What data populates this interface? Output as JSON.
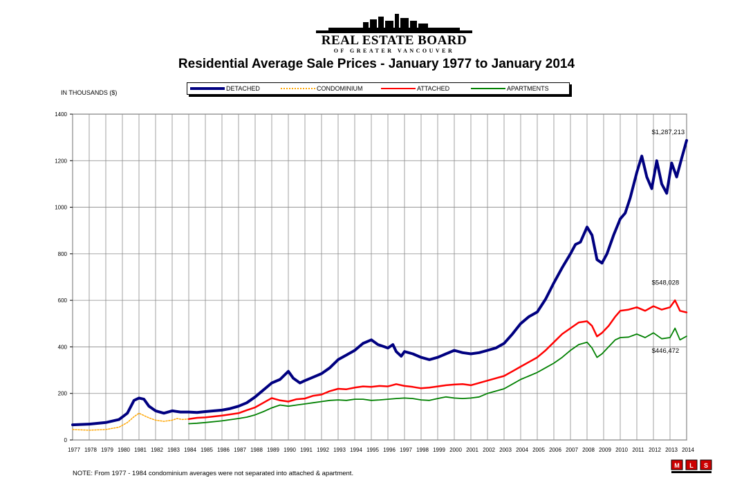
{
  "header": {
    "logo_main": "REAL ESTATE BOARD",
    "logo_sub": "OF GREATER VANCOUVER"
  },
  "footer": {
    "note": "NOTE:  From 1977 - 1984 condominium averages were not separated into attached & apartment.",
    "mls_logo": "MLS"
  },
  "colors": {
    "detached": "#000080",
    "condominium": "#FFA500",
    "attached": "#FF0000",
    "apartments": "#008000"
  },
  "chart_data": {
    "type": "line",
    "title": "Residential Average Sale Prices  -  January 1977 to January 2014",
    "ylabel": "IN THOUSANDS ($)",
    "xlabel": "",
    "ylim": [
      0,
      1400
    ],
    "xlim": [
      1977,
      2014
    ],
    "y_ticks": [
      "0",
      "200",
      "400",
      "600",
      "800",
      "1000",
      "1200",
      "1400"
    ],
    "x_ticks": [
      "1977",
      "1978",
      "1979",
      "1980",
      "1981",
      "1982",
      "1983",
      "1984",
      "1985",
      "1986",
      "1987",
      "1988",
      "1989",
      "1990",
      "1991",
      "1992",
      "1993",
      "1994",
      "1995",
      "1996",
      "1997",
      "1998",
      "1999",
      "2000",
      "2001",
      "2002",
      "2003",
      "2004",
      "2005",
      "2006",
      "2007",
      "2008",
      "2009",
      "2010",
      "2011",
      "2012",
      "2013",
      "2014"
    ],
    "grid": true,
    "legend_position": "top",
    "annotations": [
      {
        "text": "$1,287,213",
        "x": 2013.9,
        "y": 1287
      },
      {
        "text": "$548,028",
        "x": 2013.9,
        "y": 548
      },
      {
        "text": "$446,472",
        "x": 2013.9,
        "y": 446
      }
    ],
    "series": [
      {
        "name": "DETACHED",
        "color": "#000080",
        "style": "solid",
        "points": [
          [
            1977,
            65
          ],
          [
            1978,
            68
          ],
          [
            1979,
            75
          ],
          [
            1979.8,
            88
          ],
          [
            1980.3,
            115
          ],
          [
            1980.7,
            170
          ],
          [
            1981,
            180
          ],
          [
            1981.3,
            175
          ],
          [
            1981.6,
            145
          ],
          [
            1982,
            125
          ],
          [
            1982.5,
            115
          ],
          [
            1983,
            125
          ],
          [
            1983.5,
            120
          ],
          [
            1984,
            120
          ],
          [
            1984.5,
            118
          ],
          [
            1985,
            122
          ],
          [
            1986,
            128
          ],
          [
            1986.5,
            135
          ],
          [
            1987,
            145
          ],
          [
            1987.5,
            160
          ],
          [
            1988,
            185
          ],
          [
            1988.5,
            215
          ],
          [
            1989,
            245
          ],
          [
            1989.5,
            260
          ],
          [
            1990,
            295
          ],
          [
            1990.3,
            265
          ],
          [
            1990.7,
            245
          ],
          [
            1991,
            255
          ],
          [
            1991.5,
            270
          ],
          [
            1992,
            285
          ],
          [
            1992.5,
            310
          ],
          [
            1993,
            345
          ],
          [
            1993.5,
            365
          ],
          [
            1994,
            385
          ],
          [
            1994.5,
            415
          ],
          [
            1995,
            430
          ],
          [
            1995.4,
            410
          ],
          [
            1995.8,
            400
          ],
          [
            1996,
            395
          ],
          [
            1996.3,
            410
          ],
          [
            1996.5,
            380
          ],
          [
            1996.8,
            360
          ],
          [
            1997,
            380
          ],
          [
            1997.5,
            370
          ],
          [
            1998,
            355
          ],
          [
            1998.5,
            345
          ],
          [
            1999,
            355
          ],
          [
            1999.5,
            370
          ],
          [
            2000,
            385
          ],
          [
            2000.5,
            375
          ],
          [
            2001,
            370
          ],
          [
            2001.5,
            375
          ],
          [
            2002,
            385
          ],
          [
            2002.5,
            395
          ],
          [
            2003,
            415
          ],
          [
            2003.5,
            455
          ],
          [
            2004,
            500
          ],
          [
            2004.5,
            530
          ],
          [
            2005,
            550
          ],
          [
            2005.5,
            605
          ],
          [
            2006,
            675
          ],
          [
            2006.5,
            740
          ],
          [
            2007,
            800
          ],
          [
            2007.3,
            840
          ],
          [
            2007.6,
            850
          ],
          [
            2008,
            915
          ],
          [
            2008.3,
            880
          ],
          [
            2008.6,
            775
          ],
          [
            2008.9,
            760
          ],
          [
            2009.2,
            800
          ],
          [
            2009.6,
            880
          ],
          [
            2010,
            950
          ],
          [
            2010.3,
            975
          ],
          [
            2010.6,
            1040
          ],
          [
            2011,
            1150
          ],
          [
            2011.3,
            1220
          ],
          [
            2011.6,
            1130
          ],
          [
            2011.9,
            1080
          ],
          [
            2012.2,
            1200
          ],
          [
            2012.5,
            1100
          ],
          [
            2012.8,
            1060
          ],
          [
            2013.1,
            1190
          ],
          [
            2013.4,
            1130
          ],
          [
            2013.7,
            1210
          ],
          [
            2014,
            1287
          ]
        ]
      },
      {
        "name": "CONDOMINIUM",
        "color": "#FFA500",
        "style": "dotted",
        "points": [
          [
            1977,
            45
          ],
          [
            1978,
            42
          ],
          [
            1979,
            45
          ],
          [
            1979.8,
            55
          ],
          [
            1980.3,
            75
          ],
          [
            1980.7,
            100
          ],
          [
            1981,
            115
          ],
          [
            1981.3,
            105
          ],
          [
            1981.6,
            95
          ],
          [
            1982,
            85
          ],
          [
            1982.5,
            80
          ],
          [
            1983,
            85
          ],
          [
            1983.3,
            92
          ],
          [
            1983.6,
            88
          ],
          [
            1984,
            90
          ]
        ]
      },
      {
        "name": "ATTACHED",
        "color": "#FF0000",
        "style": "solid",
        "points": [
          [
            1984,
            90
          ],
          [
            1984.5,
            95
          ],
          [
            1985,
            97
          ],
          [
            1986,
            105
          ],
          [
            1987,
            115
          ],
          [
            1987.5,
            128
          ],
          [
            1988,
            140
          ],
          [
            1988.5,
            160
          ],
          [
            1989,
            180
          ],
          [
            1989.5,
            170
          ],
          [
            1990,
            165
          ],
          [
            1990.5,
            175
          ],
          [
            1991,
            178
          ],
          [
            1991.5,
            190
          ],
          [
            1992,
            195
          ],
          [
            1992.5,
            210
          ],
          [
            1993,
            220
          ],
          [
            1993.5,
            218
          ],
          [
            1994,
            225
          ],
          [
            1994.5,
            230
          ],
          [
            1995,
            228
          ],
          [
            1995.5,
            232
          ],
          [
            1996,
            230
          ],
          [
            1996.5,
            240
          ],
          [
            1997,
            232
          ],
          [
            1997.5,
            228
          ],
          [
            1998,
            222
          ],
          [
            1998.5,
            225
          ],
          [
            1999,
            230
          ],
          [
            1999.5,
            235
          ],
          [
            2000,
            238
          ],
          [
            2000.5,
            240
          ],
          [
            2001,
            235
          ],
          [
            2001.5,
            245
          ],
          [
            2002,
            255
          ],
          [
            2002.5,
            265
          ],
          [
            2003,
            275
          ],
          [
            2003.5,
            295
          ],
          [
            2004,
            315
          ],
          [
            2004.5,
            335
          ],
          [
            2005,
            355
          ],
          [
            2005.5,
            385
          ],
          [
            2006,
            420
          ],
          [
            2006.5,
            455
          ],
          [
            2007,
            480
          ],
          [
            2007.5,
            505
          ],
          [
            2008,
            510
          ],
          [
            2008.3,
            490
          ],
          [
            2008.6,
            445
          ],
          [
            2008.9,
            460
          ],
          [
            2009.3,
            490
          ],
          [
            2009.7,
            530
          ],
          [
            2010,
            555
          ],
          [
            2010.5,
            560
          ],
          [
            2011,
            570
          ],
          [
            2011.5,
            555
          ],
          [
            2012,
            575
          ],
          [
            2012.5,
            560
          ],
          [
            2013,
            570
          ],
          [
            2013.3,
            600
          ],
          [
            2013.6,
            555
          ],
          [
            2014,
            548
          ]
        ]
      },
      {
        "name": "APARTMENTS",
        "color": "#008000",
        "style": "solid",
        "points": [
          [
            1984,
            70
          ],
          [
            1984.5,
            72
          ],
          [
            1985,
            75
          ],
          [
            1986,
            82
          ],
          [
            1987,
            92
          ],
          [
            1987.5,
            98
          ],
          [
            1988,
            108
          ],
          [
            1988.5,
            122
          ],
          [
            1989,
            138
          ],
          [
            1989.5,
            150
          ],
          [
            1990,
            145
          ],
          [
            1990.5,
            150
          ],
          [
            1991,
            155
          ],
          [
            1991.5,
            160
          ],
          [
            1992,
            165
          ],
          [
            1992.5,
            170
          ],
          [
            1993,
            172
          ],
          [
            1993.5,
            170
          ],
          [
            1994,
            175
          ],
          [
            1994.5,
            175
          ],
          [
            1995,
            170
          ],
          [
            1995.5,
            172
          ],
          [
            1996,
            175
          ],
          [
            1996.5,
            178
          ],
          [
            1997,
            180
          ],
          [
            1997.5,
            178
          ],
          [
            1998,
            172
          ],
          [
            1998.5,
            170
          ],
          [
            1999,
            178
          ],
          [
            1999.5,
            185
          ],
          [
            2000,
            180
          ],
          [
            2000.5,
            178
          ],
          [
            2001,
            180
          ],
          [
            2001.5,
            185
          ],
          [
            2002,
            200
          ],
          [
            2002.5,
            210
          ],
          [
            2003,
            220
          ],
          [
            2003.5,
            240
          ],
          [
            2004,
            260
          ],
          [
            2004.5,
            275
          ],
          [
            2005,
            290
          ],
          [
            2005.5,
            310
          ],
          [
            2006,
            330
          ],
          [
            2006.5,
            355
          ],
          [
            2007,
            385
          ],
          [
            2007.5,
            410
          ],
          [
            2008,
            420
          ],
          [
            2008.3,
            395
          ],
          [
            2008.6,
            355
          ],
          [
            2008.9,
            370
          ],
          [
            2009.3,
            400
          ],
          [
            2009.7,
            430
          ],
          [
            2010,
            440
          ],
          [
            2010.5,
            442
          ],
          [
            2011,
            455
          ],
          [
            2011.5,
            440
          ],
          [
            2012,
            460
          ],
          [
            2012.5,
            435
          ],
          [
            2013,
            440
          ],
          [
            2013.3,
            480
          ],
          [
            2013.6,
            430
          ],
          [
            2014,
            446
          ]
        ]
      }
    ]
  }
}
